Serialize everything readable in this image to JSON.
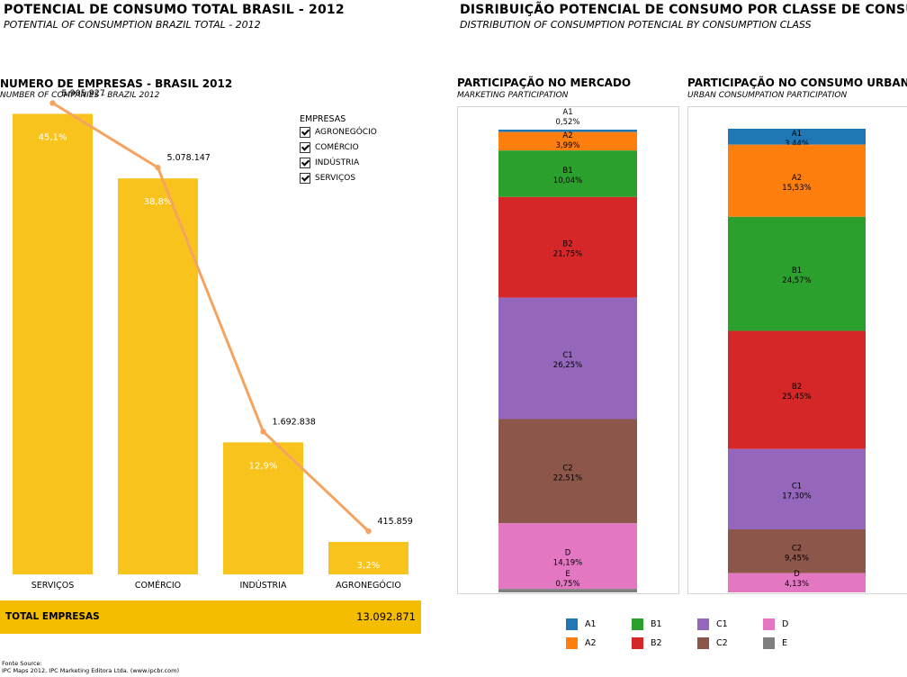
{
  "header_left": {
    "title": "POTENCIAL DE CONSUMO TOTAL BRASIL - 2012",
    "subtitle": "POTENTIAL OF CONSUMPTION BRAZIL TOTAL - 2012"
  },
  "header_right": {
    "title": "DISRIBUIÇÃO POTENCIAL DE CONSUMO POR CLASSE DE CONSUMO",
    "subtitle": "DISTRIBUTION OF CONSUMPTION POTENCIAL BY CONSUMPTION CLASS"
  },
  "companies_chart": {
    "title": "NUMERO  DE EMPRESAS - BRASIL 2012",
    "subtitle": "NUMBER OF COMPANIES - BRAZIL 2012",
    "legend_title": "EMPRESAS",
    "legend_items": [
      "AGRONEGÓCIO",
      "COMÉRCIO",
      "INDÚSTRIA",
      "SERVIÇOS"
    ]
  },
  "total": {
    "label": "TOTAL EMPRESAS",
    "value": "13.092.871"
  },
  "market_panel": {
    "title": "PARTICIPAÇÃO NO MERCADO",
    "subtitle": "MARKETING PARTICIPATION"
  },
  "urban_panel": {
    "title": "PARTICIPAÇÃO NO CONSUMO URBANO",
    "subtitle": "URBAN CONSUMPATION PARTICIPATION"
  },
  "class_legend": [
    {
      "label": "A1",
      "color": "#1f77b4"
    },
    {
      "label": "B1",
      "color": "#2ca02c"
    },
    {
      "label": "C1",
      "color": "#9467bd"
    },
    {
      "label": "D",
      "color": "#e377c2"
    },
    {
      "label": "A2",
      "color": "#ff7f0e"
    },
    {
      "label": "B2",
      "color": "#d62728"
    },
    {
      "label": "C2",
      "color": "#8c564b"
    },
    {
      "label": "E",
      "color": "#7f7f7f"
    }
  ],
  "source": {
    "label": "Fonte Source:",
    "text": "IPC Maps 2012, IPC Marketing Editora Ltda. (www.ipcbr.com)"
  },
  "chart_data": [
    {
      "type": "bar",
      "categories": [
        "SERVIÇOS",
        "COMÉRCIO",
        "INDÚSTRIA",
        "AGRONEGÓCIO"
      ],
      "values": [
        5905927,
        5078147,
        1692838,
        415859
      ],
      "value_labels": [
        "5.905.927",
        "5.078.147",
        "1.692.838",
        "415.859"
      ],
      "percent_labels": [
        "45,1%",
        "38,8%",
        "12,9%",
        "3,2%"
      ],
      "line_overlay": true,
      "bar_color": "#f9c31d",
      "line_color": "#f4a460",
      "title": "NUMERO  DE EMPRESAS - BRASIL 2012"
    },
    {
      "type": "bar",
      "stacked": true,
      "title": "PARTICIPAÇÃO NO MERCADO",
      "categories": [
        "A1",
        "A2",
        "B1",
        "B2",
        "C1",
        "C2",
        "D",
        "E"
      ],
      "values": [
        0.52,
        3.99,
        10.04,
        21.75,
        26.25,
        22.51,
        14.19,
        0.75
      ],
      "value_labels": [
        "0,52%",
        "3,99%",
        "10,04%",
        "21,75%",
        "26,25%",
        "22,51%",
        "14,19%",
        "0,75%"
      ]
    },
    {
      "type": "bar",
      "stacked": true,
      "title": "PARTICIPAÇÃO NO CONSUMO URBANO",
      "categories": [
        "A1",
        "A2",
        "B1",
        "B2",
        "C1",
        "C2",
        "D"
      ],
      "values": [
        3.44,
        15.53,
        24.57,
        25.45,
        17.3,
        9.45,
        4.13
      ],
      "value_labels": [
        "3,44%",
        "15,53%",
        "24,57%",
        "25,45%",
        "17,30%",
        "9,45%",
        "4,13%"
      ]
    }
  ]
}
